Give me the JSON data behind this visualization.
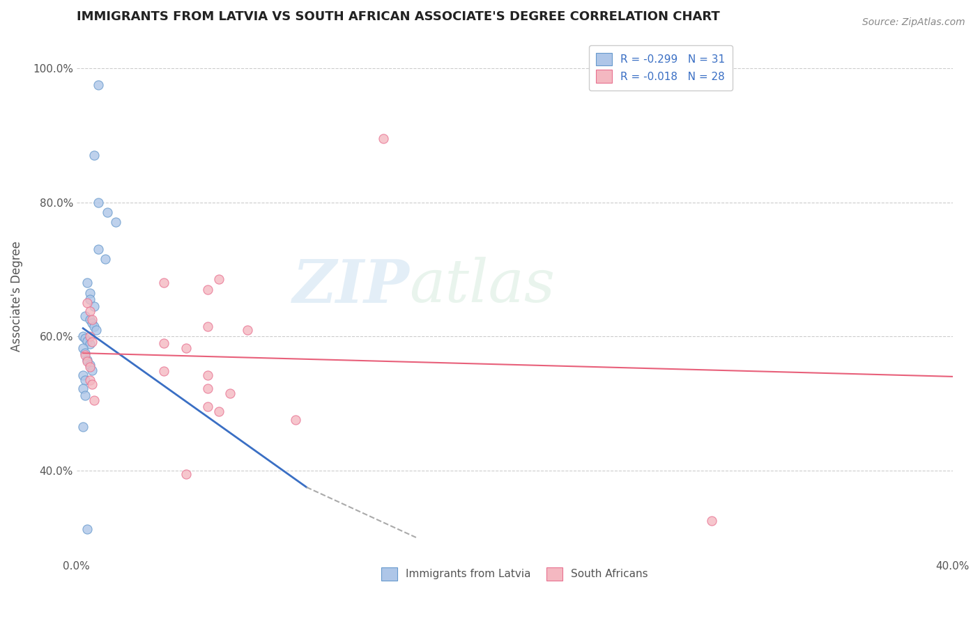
{
  "title": "IMMIGRANTS FROM LATVIA VS SOUTH AFRICAN ASSOCIATE'S DEGREE CORRELATION CHART",
  "source": "Source: ZipAtlas.com",
  "ylabel": "Associate's Degree",
  "xlim": [
    0.0,
    0.4
  ],
  "ylim": [
    0.27,
    1.05
  ],
  "x_tick_positions": [
    0.0,
    0.1,
    0.2,
    0.3,
    0.4
  ],
  "x_tick_labels": [
    "0.0%",
    "",
    "",
    "",
    "40.0%"
  ],
  "y_tick_positions": [
    0.4,
    0.6,
    0.8,
    1.0
  ],
  "y_tick_labels": [
    "40.0%",
    "60.0%",
    "80.0%",
    "100.0%"
  ],
  "legend_r_entries": [
    "R = -0.299   N = 31",
    "R = -0.018   N = 28"
  ],
  "watermark_zip": "ZIP",
  "watermark_atlas": "atlas",
  "blue_dots": [
    [
      0.01,
      0.975
    ],
    [
      0.008,
      0.87
    ],
    [
      0.01,
      0.8
    ],
    [
      0.014,
      0.785
    ],
    [
      0.018,
      0.77
    ],
    [
      0.01,
      0.73
    ],
    [
      0.013,
      0.715
    ],
    [
      0.005,
      0.68
    ],
    [
      0.006,
      0.665
    ],
    [
      0.006,
      0.655
    ],
    [
      0.008,
      0.645
    ],
    [
      0.004,
      0.63
    ],
    [
      0.006,
      0.625
    ],
    [
      0.007,
      0.62
    ],
    [
      0.008,
      0.615
    ],
    [
      0.009,
      0.61
    ],
    [
      0.003,
      0.6
    ],
    [
      0.004,
      0.597
    ],
    [
      0.005,
      0.593
    ],
    [
      0.006,
      0.589
    ],
    [
      0.003,
      0.582
    ],
    [
      0.004,
      0.575
    ],
    [
      0.005,
      0.565
    ],
    [
      0.006,
      0.558
    ],
    [
      0.007,
      0.549
    ],
    [
      0.003,
      0.542
    ],
    [
      0.004,
      0.535
    ],
    [
      0.003,
      0.522
    ],
    [
      0.004,
      0.512
    ],
    [
      0.003,
      0.465
    ],
    [
      0.005,
      0.312
    ]
  ],
  "pink_dots": [
    [
      0.14,
      0.895
    ],
    [
      0.065,
      0.685
    ],
    [
      0.04,
      0.68
    ],
    [
      0.06,
      0.67
    ],
    [
      0.005,
      0.65
    ],
    [
      0.006,
      0.638
    ],
    [
      0.007,
      0.625
    ],
    [
      0.06,
      0.615
    ],
    [
      0.078,
      0.61
    ],
    [
      0.006,
      0.6
    ],
    [
      0.007,
      0.592
    ],
    [
      0.04,
      0.59
    ],
    [
      0.05,
      0.582
    ],
    [
      0.004,
      0.572
    ],
    [
      0.005,
      0.563
    ],
    [
      0.006,
      0.554
    ],
    [
      0.04,
      0.548
    ],
    [
      0.06,
      0.542
    ],
    [
      0.006,
      0.535
    ],
    [
      0.007,
      0.528
    ],
    [
      0.06,
      0.522
    ],
    [
      0.07,
      0.515
    ],
    [
      0.008,
      0.505
    ],
    [
      0.06,
      0.495
    ],
    [
      0.065,
      0.488
    ],
    [
      0.1,
      0.475
    ],
    [
      0.05,
      0.395
    ],
    [
      0.29,
      0.325
    ]
  ],
  "blue_line_x": [
    0.003,
    0.105
  ],
  "blue_line_y": [
    0.612,
    0.375
  ],
  "dashed_line_x": [
    0.105,
    0.155
  ],
  "dashed_line_y": [
    0.375,
    0.3
  ],
  "pink_line_x": [
    0.003,
    0.4
  ],
  "pink_line_y": [
    0.575,
    0.54
  ],
  "background_color": "#ffffff",
  "grid_color": "#cccccc",
  "dot_size": 90,
  "blue_dot_color": "#aec6e8",
  "pink_dot_color": "#f4b8c1",
  "blue_edge_color": "#6699cc",
  "pink_edge_color": "#e87090",
  "blue_line_color": "#3a6fc4",
  "pink_line_color": "#e8607a",
  "title_color": "#222222",
  "axis_label_color": "#555555",
  "tick_color": "#555555"
}
